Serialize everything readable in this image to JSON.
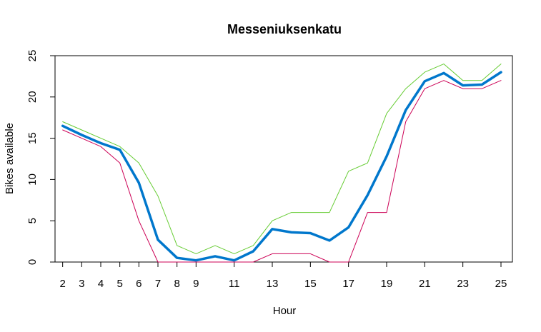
{
  "chart_data": {
    "type": "line",
    "title": "Messeniuksenkatu",
    "xlabel": "Hour",
    "ylabel": "Bikes available",
    "xlim": [
      1.6,
      25.6
    ],
    "ylim": [
      0,
      25
    ],
    "x_ticks": [
      2,
      3,
      4,
      5,
      6,
      7,
      8,
      9,
      11,
      13,
      15,
      17,
      19,
      21,
      23,
      25
    ],
    "y_ticks": [
      0,
      5,
      10,
      15,
      20,
      25
    ],
    "grid": false,
    "x": [
      2,
      3,
      4,
      5,
      6,
      7,
      8,
      9,
      10,
      11,
      12,
      13,
      14,
      15,
      16,
      17,
      18,
      19,
      20,
      21,
      22,
      23,
      24,
      25
    ],
    "series": [
      {
        "color": "#66cc33",
        "width": 1,
        "values": [
          17,
          16,
          15,
          14,
          12,
          8,
          2,
          1,
          2,
          1,
          2,
          5,
          6,
          6,
          6,
          11,
          12,
          18,
          21,
          23,
          24,
          22,
          22,
          24
        ]
      },
      {
        "color": "#cc0055",
        "width": 1,
        "values": [
          16,
          15,
          14,
          12,
          5,
          0,
          0,
          0,
          0,
          0,
          0,
          1,
          1,
          1,
          0,
          0,
          6,
          6,
          17,
          21,
          22,
          21,
          21,
          22
        ]
      },
      {
        "color": "#0077cc",
        "width": 3.5,
        "values": [
          16.5,
          15.4,
          14.4,
          13.6,
          9.6,
          2.7,
          0.5,
          0.2,
          0.7,
          0.2,
          1.3,
          4.0,
          3.6,
          3.5,
          2.6,
          4.2,
          8.1,
          12.8,
          18.4,
          21.9,
          22.9,
          21.4,
          21.5,
          23.0
        ]
      }
    ]
  }
}
